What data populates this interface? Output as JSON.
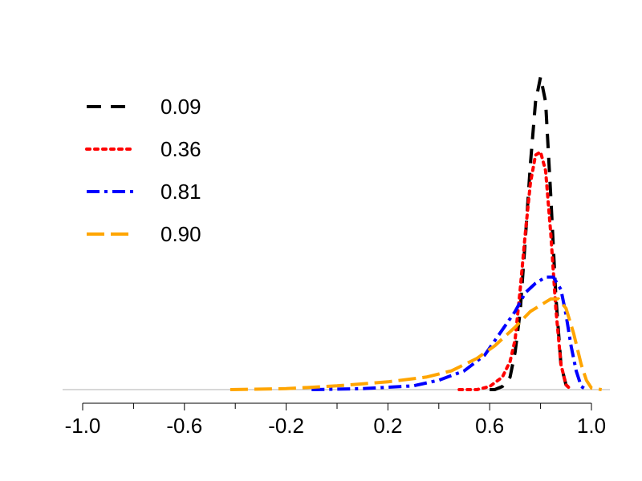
{
  "chart_data": {
    "type": "line",
    "title": "",
    "xlabel": "",
    "ylabel": "",
    "xlim": [
      -1.1,
      1.1
    ],
    "ylim": [
      0,
      1.0
    ],
    "grid": false,
    "legend_position": "top-left",
    "x_ticks": [
      -1.0,
      -0.6,
      -0.2,
      0.2,
      0.6,
      1.0
    ],
    "x_tick_labels": [
      "-1.0",
      "-0.6",
      "-0.2",
      "0.2",
      "0.6",
      "1.0"
    ],
    "x_minor_ticks": [
      -0.8,
      -0.4,
      0.0,
      0.4,
      0.8
    ],
    "series": [
      {
        "name": "0.09",
        "color": "#000000",
        "dash": "dashed",
        "points": [
          [
            0.6,
            0
          ],
          [
            0.62,
            0.0
          ],
          [
            0.65,
            0.01
          ],
          [
            0.68,
            0.04
          ],
          [
            0.7,
            0.12
          ],
          [
            0.72,
            0.25
          ],
          [
            0.74,
            0.48
          ],
          [
            0.76,
            0.72
          ],
          [
            0.78,
            0.92
          ],
          [
            0.8,
            1.0
          ],
          [
            0.82,
            0.92
          ],
          [
            0.84,
            0.62
          ],
          [
            0.86,
            0.3
          ],
          [
            0.88,
            0.08
          ],
          [
            0.9,
            0.015
          ],
          [
            0.92,
            0.0
          ]
        ]
      },
      {
        "name": "0.36",
        "color": "#ff0000",
        "dash": "dotted",
        "points": [
          [
            0.48,
            0
          ],
          [
            0.55,
            0.0
          ],
          [
            0.6,
            0.01
          ],
          [
            0.65,
            0.04
          ],
          [
            0.68,
            0.09
          ],
          [
            0.7,
            0.16
          ],
          [
            0.72,
            0.32
          ],
          [
            0.74,
            0.5
          ],
          [
            0.76,
            0.66
          ],
          [
            0.78,
            0.75
          ],
          [
            0.8,
            0.76
          ],
          [
            0.82,
            0.7
          ],
          [
            0.84,
            0.5
          ],
          [
            0.86,
            0.26
          ],
          [
            0.88,
            0.08
          ],
          [
            0.9,
            0.015
          ],
          [
            0.92,
            0.0
          ]
        ]
      },
      {
        "name": "0.81",
        "color": "#0000ff",
        "dash": "dashdot",
        "points": [
          [
            -0.1,
            0
          ],
          [
            0.1,
            0.003
          ],
          [
            0.3,
            0.012
          ],
          [
            0.4,
            0.03
          ],
          [
            0.5,
            0.06
          ],
          [
            0.58,
            0.11
          ],
          [
            0.64,
            0.18
          ],
          [
            0.7,
            0.25
          ],
          [
            0.74,
            0.31
          ],
          [
            0.78,
            0.34
          ],
          [
            0.82,
            0.36
          ],
          [
            0.85,
            0.36
          ],
          [
            0.88,
            0.32
          ],
          [
            0.9,
            0.24
          ],
          [
            0.92,
            0.14
          ],
          [
            0.94,
            0.06
          ],
          [
            0.96,
            0.01
          ],
          [
            0.98,
            0.0
          ]
        ]
      },
      {
        "name": "0.90",
        "color": "#ffa500",
        "dash": "longdash",
        "points": [
          [
            -0.42,
            0
          ],
          [
            -0.2,
            0.003
          ],
          [
            0.0,
            0.012
          ],
          [
            0.2,
            0.025
          ],
          [
            0.35,
            0.04
          ],
          [
            0.45,
            0.06
          ],
          [
            0.55,
            0.1
          ],
          [
            0.62,
            0.14
          ],
          [
            0.7,
            0.2
          ],
          [
            0.76,
            0.25
          ],
          [
            0.8,
            0.27
          ],
          [
            0.84,
            0.29
          ],
          [
            0.87,
            0.29
          ],
          [
            0.9,
            0.26
          ],
          [
            0.93,
            0.18
          ],
          [
            0.96,
            0.08
          ],
          [
            0.98,
            0.03
          ],
          [
            1.0,
            0.005
          ],
          [
            1.04,
            0.0
          ]
        ]
      }
    ]
  }
}
